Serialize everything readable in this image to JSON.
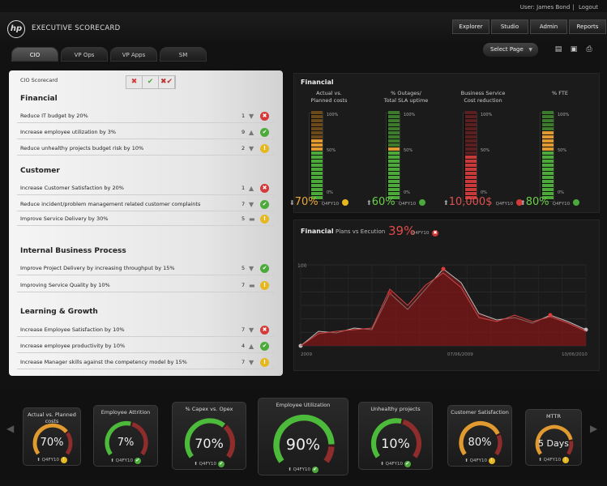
{
  "user": {
    "label": "User: James Bond",
    "logout": "Logout"
  },
  "app": {
    "logo": "hp",
    "title": "EXECUTIVE SCORECARD"
  },
  "topnav": [
    "Explorer",
    "Studio",
    "Admin",
    "Reports"
  ],
  "tabs": [
    "CIO",
    "VP Ops",
    "VP Apps",
    "SM"
  ],
  "select_page": "Select Page",
  "scorecard": {
    "title": "CIO Scorecard",
    "sections": [
      {
        "name": "Financial",
        "rows": [
          {
            "text": "Reduce IT budget by 20%",
            "count": "1",
            "trend": "down",
            "status": "red"
          },
          {
            "text": "Increase employee utilization by 3%",
            "count": "9",
            "trend": "up",
            "status": "green"
          },
          {
            "text": "Reduce unhealthy projects budget risk by 10%",
            "count": "2",
            "trend": "down",
            "status": "yellow"
          }
        ]
      },
      {
        "name": "Customer",
        "rows": [
          {
            "text": "Increase Customer Satisfaction by 20%",
            "count": "1",
            "trend": "up",
            "status": "red"
          },
          {
            "text": "Reduce incident/problem management related customer complaints",
            "count": "7",
            "trend": "down",
            "status": "green"
          },
          {
            "text": "Improve Service Delivery by 30%",
            "count": "5",
            "trend": "flat",
            "status": "yellow"
          }
        ]
      },
      {
        "name": "Internal Business Process",
        "rows": [
          {
            "text": "Improve Project Delivery by increasing throughput by 15%",
            "count": "5",
            "trend": "down",
            "status": "green"
          },
          {
            "text": "Improving Service Quality by 10%",
            "count": "7",
            "trend": "flat",
            "status": "yellow"
          }
        ]
      },
      {
        "name": "Learning & Growth",
        "rows": [
          {
            "text": "Increase Employee Satisfaction by 10%",
            "count": "7",
            "trend": "down",
            "status": "red"
          },
          {
            "text": "Increase employee productivity by 10%",
            "count": "4",
            "trend": "up",
            "status": "green"
          },
          {
            "text": "Increase Manager skills against the competency model by  15%",
            "count": "7",
            "trend": "down",
            "status": "yellow"
          }
        ]
      }
    ]
  },
  "financial": {
    "title": "Financial",
    "ticks": [
      "100%",
      "50%",
      "0%"
    ],
    "columns": [
      {
        "head": "Actual vs.\nPlanned costs",
        "value": "70%",
        "period": "Q4FY10",
        "trend": "down",
        "status": "yellow",
        "level": 0.7,
        "value_color": "#e8a838"
      },
      {
        "head": "% Outages/\nTotal SLA uptime",
        "value": "60%",
        "period": "Q4FY10",
        "trend": "up",
        "status": "green",
        "level": 0.6,
        "value_color": "#6ccf4a"
      },
      {
        "head": "Business Service\nCost reduction",
        "value": "10,000$",
        "period": "Q4FY10",
        "trend": "up",
        "status": "red",
        "level": 0.5,
        "value_color": "#e05050"
      },
      {
        "head": "% FTE",
        "value": "80%",
        "period": "Q4FY10",
        "trend": "up",
        "status": "green",
        "level": 0.8,
        "value_color": "#6ccf4a"
      }
    ]
  },
  "chart_data": {
    "type": "area",
    "title": "Financial",
    "subtitle": "Plans vs Eecution",
    "kpi": "39%",
    "period": "Q4FY10",
    "ylabel_tick": "100",
    "x_ticks": [
      "2009",
      "07/06/2009",
      "10/06/2010"
    ],
    "ylim": [
      0,
      100
    ],
    "series": [
      {
        "values": [
          0,
          18,
          16,
          22,
          20,
          65,
          45,
          70,
          95,
          78,
          40,
          32,
          35,
          28,
          38,
          30,
          20
        ]
      },
      {
        "values": [
          0,
          15,
          18,
          20,
          22,
          70,
          50,
          75,
          90,
          72,
          35,
          30,
          38,
          30,
          36,
          28,
          18
        ]
      }
    ]
  },
  "gauges": [
    {
      "title": "Actual vs. Planned costs",
      "value": "70%",
      "period": "Q4FY10",
      "status": "yellow",
      "level": 0.7
    },
    {
      "title": "Employee Attrition",
      "value": "7%",
      "period": "Q4FY10",
      "status": "green",
      "level": 0.55
    },
    {
      "title": "% Capex vs. Opex",
      "value": "70%",
      "period": "Q4FY10",
      "status": "green",
      "level": 0.65
    },
    {
      "title": "Employee Utilization",
      "value": "90%",
      "period": "Q4FY10",
      "status": "green",
      "level": 0.85
    },
    {
      "title": "Unhealthy projects",
      "value": "10%",
      "period": "Q4FY10",
      "status": "green",
      "level": 0.55
    },
    {
      "title": "Customer Satisfaction",
      "value": "80%",
      "period": "Q4FY10",
      "status": "yellow",
      "level": 0.75
    },
    {
      "title": "MTTR",
      "value": "5 Days",
      "period": "Q4FY10",
      "status": "yellow",
      "level": 0.8
    }
  ]
}
